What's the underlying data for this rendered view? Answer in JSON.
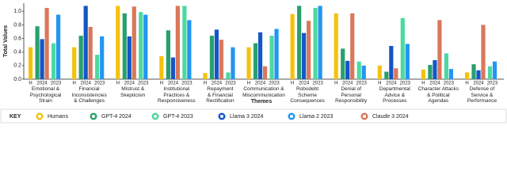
{
  "chart_data": {
    "type": "bar",
    "y_label": "Total Values",
    "x_label": "Themes",
    "categories": [
      "Emotional &\nPsychological\nStrain",
      "Financial\nInconsistencies\n& Challenges",
      "Mistrust &\nSkepticism",
      "Institutional\nPractices &\nResponsiveness",
      "Repayment\n& Financial\nRectification",
      "Communication &\nMiscommunication",
      "Robodebt\nScheme\nConsequences",
      "Denial of\nPersonal\nResponsibility",
      "Departmental\nAdvice &\nProcesses",
      "Character Attacks\n& Political\nAgendas",
      "Defense of\nService &\nPerformance"
    ],
    "group_labels": [
      "H",
      "2024",
      "2023"
    ],
    "legend_title": "KEY",
    "series": [
      {
        "name": "Humans",
        "color": "#f4c20d",
        "values": [
          0.47,
          0.47,
          1.08,
          0.34,
          0.09,
          0.47,
          0.96,
          0.97,
          0.2,
          0.14,
          0.1
        ]
      },
      {
        "name": "GPT-4 2024",
        "color": "#27a06e",
        "values": [
          0.78,
          0.64,
          0.97,
          0.72,
          0.64,
          0.53,
          1.08,
          0.45,
          0.11,
          0.21,
          0.22
        ]
      },
      {
        "name": "GPT-4 2023",
        "color": "#4cd9a0",
        "values": [
          0.53,
          0.36,
          0.99,
          1.08,
          0.1,
          0.64,
          1.05,
          0.26,
          0.9,
          0.38,
          0.19
        ]
      },
      {
        "name": "Llama 3 2024",
        "color": "#1456c8",
        "values": [
          0.59,
          1.08,
          0.63,
          0.32,
          0.73,
          0.69,
          0.68,
          0.27,
          0.49,
          0.28,
          0.13
        ]
      },
      {
        "name": "Llama 2 2023",
        "color": "#2196f3",
        "values": [
          0.95,
          0.63,
          0.95,
          0.87,
          0.47,
          0.74,
          1.08,
          0.2,
          0.52,
          0.15,
          0.26
        ]
      },
      {
        "name": "Claude 3 2024",
        "color": "#d9785a",
        "values": [
          1.05,
          0.77,
          1.07,
          1.08,
          0.58,
          0.19,
          0.86,
          0.97,
          0.16,
          0.87,
          0.8
        ]
      }
    ],
    "ylim": [
      0,
      1.12
    ],
    "yticks": [
      {
        "value": 0,
        "label": "0.0"
      },
      {
        "value": 0.2,
        "label": "0.2"
      },
      {
        "value": 0.4,
        "label": "0.4"
      },
      {
        "value": 0.6,
        "label": "0.6"
      },
      {
        "value": 0.8,
        "label": "0.8"
      },
      {
        "value": 1,
        "label": "1.0"
      }
    ]
  }
}
